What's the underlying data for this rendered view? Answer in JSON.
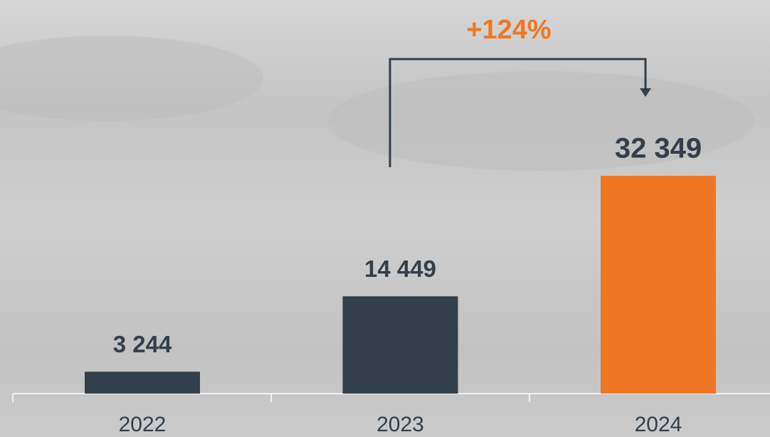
{
  "chart_data": {
    "type": "bar",
    "categories": [
      "2022",
      "2023",
      "2024"
    ],
    "values": [
      3244,
      14449,
      32349
    ],
    "value_labels": [
      "3 244",
      "14 449",
      "32 349"
    ],
    "colors": [
      "#333f4a",
      "#333f4a",
      "#ef7623"
    ],
    "label_colors": [
      "#333f4a",
      "#333f4a",
      "#333f4a"
    ],
    "annotation": "+124%",
    "annotation_color": "#ef7623"
  }
}
